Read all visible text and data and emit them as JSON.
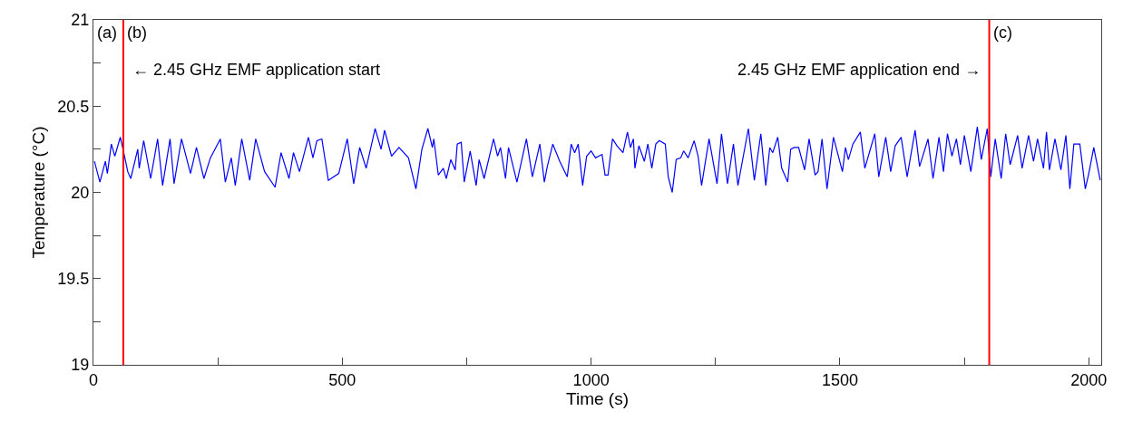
{
  "chart_data": {
    "type": "line",
    "xlabel": "Time (s)",
    "ylabel": "Temperature (°C)",
    "xlim": [
      0,
      2025
    ],
    "ylim": [
      19,
      21
    ],
    "xticks": [
      0,
      {
        "value": 250,
        "label": null
      },
      500,
      {
        "value": 750,
        "label": null
      },
      1000,
      {
        "value": 1250,
        "label": null
      },
      1500,
      {
        "value": 1750,
        "label": null
      },
      2000
    ],
    "yticks": [
      19,
      {
        "value": 19.25,
        "label": null
      },
      19.5,
      {
        "value": 19.75,
        "label": null
      },
      20,
      {
        "value": 20.25,
        "label": null
      },
      20.5,
      {
        "value": 20.75,
        "label": null
      },
      21
    ],
    "marker": "none",
    "line_style": "solid",
    "series": [
      {
        "color": "#0000ff",
        "x": [
          2,
          13,
          24,
          28,
          36,
          43,
          54,
          61,
          69,
          75,
          89,
          92,
          101,
          115,
          129,
          139,
          154,
          162,
          177,
          195,
          207,
          222,
          235,
          255,
          265,
          277,
          285,
          298,
          314,
          326,
          344,
          365,
          377,
          393,
          402,
          414,
          432,
          441,
          449,
          459,
          472,
          493,
          510,
          523,
          535,
          548,
          566,
          578,
          585,
          599,
          614,
          633,
          648,
          660,
          672,
          681,
          684,
          693,
          703,
          709,
          718,
          727,
          731,
          739,
          745,
          757,
          769,
          775,
          785,
          804,
          812,
          818,
          828,
          834,
          851,
          870,
          882,
          897,
          906,
          912,
          923,
          937,
          952,
          960,
          967,
          974,
          983,
          991,
          1000,
          1009,
          1022,
          1028,
          1034,
          1043,
          1052,
          1064,
          1073,
          1079,
          1085,
          1088,
          1096,
          1107,
          1114,
          1122,
          1130,
          1137,
          1149,
          1155,
          1163,
          1171,
          1180,
          1186,
          1195,
          1207,
          1215,
          1222,
          1237,
          1253,
          1262,
          1274,
          1286,
          1295,
          1316,
          1328,
          1341,
          1351,
          1359,
          1365,
          1375,
          1383,
          1395,
          1401,
          1408,
          1417,
          1429,
          1438,
          1450,
          1456,
          1464,
          1474,
          1487,
          1505,
          1511,
          1517,
          1526,
          1541,
          1550,
          1570,
          1578,
          1592,
          1602,
          1611,
          1623,
          1635,
          1651,
          1660,
          1677,
          1687,
          1699,
          1708,
          1716,
          1725,
          1734,
          1742,
          1750,
          1763,
          1776,
          1784,
          1796,
          1803,
          1812,
          1824,
          1833,
          1842,
          1857,
          1866,
          1879,
          1889,
          1897,
          1909,
          1915,
          1921,
          1932,
          1944,
          1954,
          1962,
          1970,
          1982,
          1993,
          2000,
          2010,
          2023
        ],
        "values": [
          20.18,
          20.06,
          20.18,
          20.11,
          20.28,
          20.21,
          20.32,
          20.23,
          20.12,
          20.08,
          20.25,
          20.14,
          20.3,
          20.08,
          20.31,
          20.04,
          20.31,
          20.05,
          20.31,
          20.11,
          20.26,
          20.08,
          20.2,
          20.31,
          20.06,
          20.2,
          20.04,
          20.31,
          20.07,
          20.31,
          20.12,
          20.03,
          20.23,
          20.08,
          20.23,
          20.12,
          20.32,
          20.2,
          20.3,
          20.31,
          20.07,
          20.11,
          20.31,
          20.05,
          20.26,
          20.14,
          20.37,
          20.25,
          20.36,
          20.21,
          20.26,
          20.2,
          20.02,
          20.25,
          20.37,
          20.26,
          20.31,
          20.1,
          20.14,
          20.08,
          20.19,
          20.13,
          20.28,
          20.29,
          20.06,
          20.24,
          20.04,
          20.19,
          20.08,
          20.31,
          20.21,
          20.26,
          20.08,
          20.26,
          20.06,
          20.31,
          20.09,
          20.28,
          20.06,
          20.15,
          20.28,
          20.18,
          20.09,
          20.28,
          20.23,
          20.28,
          20.04,
          20.21,
          20.24,
          20.2,
          20.22,
          20.1,
          20.1,
          20.31,
          20.27,
          20.23,
          20.35,
          20.26,
          20.31,
          20.14,
          20.27,
          20.18,
          20.28,
          20.14,
          20.28,
          20.3,
          20.28,
          20.09,
          20.0,
          20.19,
          20.2,
          20.24,
          20.2,
          20.3,
          20.21,
          20.04,
          20.31,
          20.05,
          20.34,
          20.05,
          20.28,
          20.04,
          20.37,
          20.07,
          20.34,
          20.04,
          20.26,
          20.23,
          20.32,
          20.14,
          20.06,
          20.25,
          20.26,
          20.26,
          20.13,
          20.31,
          20.1,
          20.12,
          20.31,
          20.02,
          20.32,
          20.12,
          20.26,
          20.19,
          20.28,
          20.35,
          20.14,
          20.34,
          20.09,
          20.32,
          20.12,
          20.27,
          20.32,
          20.09,
          20.36,
          20.15,
          20.31,
          20.08,
          20.32,
          20.12,
          20.34,
          20.21,
          20.31,
          20.16,
          20.33,
          20.12,
          20.38,
          20.19,
          20.37,
          20.09,
          20.31,
          20.08,
          20.34,
          20.16,
          20.33,
          20.14,
          20.33,
          20.18,
          20.31,
          20.14,
          20.35,
          20.13,
          20.31,
          20.13,
          20.33,
          20.02,
          20.28,
          20.28,
          20.02,
          20.11,
          20.26,
          20.07
        ]
      }
    ],
    "ref_lines": [
      {
        "axis": "x",
        "value": 60,
        "label": "(b)",
        "color": "#ff0000"
      },
      {
        "axis": "x",
        "value": 1800,
        "label": "(c)",
        "color": "#ff0000"
      }
    ],
    "annotations": [
      "(a)",
      {
        "text": "← 2.45 GHz EMF application start",
        "x": 60,
        "y": 20.71
      },
      {
        "text": "2.45 GHz EMF application end →",
        "x": 1800,
        "y": 20.71
      }
    ]
  }
}
